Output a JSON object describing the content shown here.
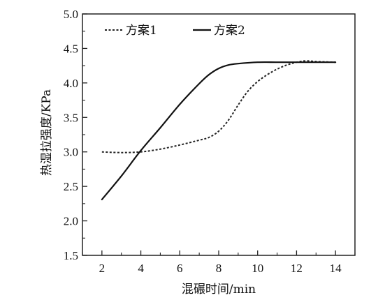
{
  "chart_data": {
    "type": "line",
    "xlabel": "混碾时间/min",
    "ylabel": "热湿拉强度/KPa",
    "xlim": [
      1,
      15
    ],
    "ylim": [
      1.5,
      5.0
    ],
    "x_ticks": [
      "2",
      "4",
      "6",
      "8",
      "10",
      "12",
      "14"
    ],
    "y_ticks": [
      "1.5",
      "2.0",
      "2.5",
      "3.0",
      "3.5",
      "4.0",
      "4.5",
      "5.0"
    ],
    "grid": false,
    "legend_position": "top",
    "series": [
      {
        "name": "方案1",
        "style": "dashed",
        "color": "#222222",
        "x": [
          2,
          3,
          4,
          5,
          6,
          7,
          7.5,
          8,
          8.5,
          9,
          9.5,
          10,
          10.5,
          11,
          11.5,
          12,
          12.5,
          13,
          14
        ],
        "y": [
          3.0,
          2.99,
          3.0,
          3.04,
          3.1,
          3.17,
          3.21,
          3.3,
          3.46,
          3.68,
          3.88,
          4.02,
          4.12,
          4.2,
          4.26,
          4.3,
          4.32,
          4.31,
          4.3
        ]
      },
      {
        "name": "方案2",
        "style": "solid",
        "color": "#111111",
        "x": [
          2,
          3,
          4,
          5,
          6,
          7,
          7.5,
          8,
          8.5,
          9,
          10,
          11,
          12,
          13,
          14
        ],
        "y": [
          2.31,
          2.65,
          3.02,
          3.35,
          3.69,
          3.99,
          4.12,
          4.21,
          4.26,
          4.28,
          4.3,
          4.3,
          4.3,
          4.3,
          4.3
        ]
      }
    ]
  }
}
